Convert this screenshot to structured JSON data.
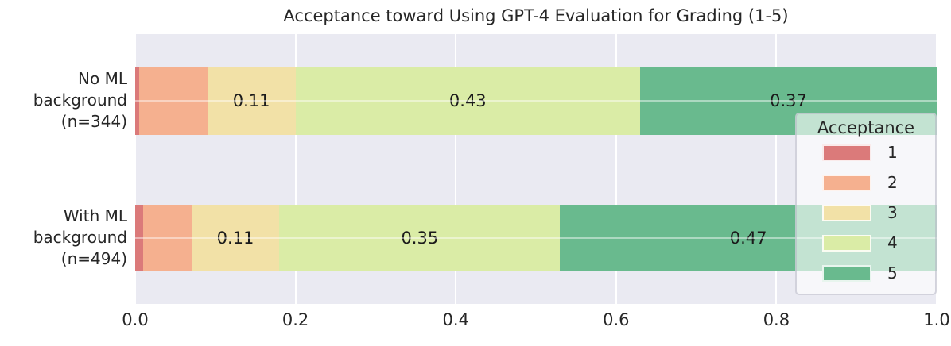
{
  "chart_data": {
    "type": "bar",
    "orientation": "horizontal",
    "stacked": true,
    "title": "Acceptance toward Using GPT-4 Evaluation for Grading (1-5)",
    "categories": [
      {
        "lines": [
          "No ML",
          "background",
          "(n=344)"
        ]
      },
      {
        "lines": [
          "With ML",
          "background",
          "(n=494)"
        ]
      }
    ],
    "series": [
      {
        "name": "1",
        "color": "#db7a7a",
        "values": [
          0.005,
          0.01
        ]
      },
      {
        "name": "2",
        "color": "#f5b08f",
        "values": [
          0.085,
          0.06
        ]
      },
      {
        "name": "3",
        "color": "#f2e1a7",
        "values": [
          0.11,
          0.11
        ]
      },
      {
        "name": "4",
        "color": "#daeca6",
        "values": [
          0.43,
          0.35
        ]
      },
      {
        "name": "5",
        "color": "#69ba8e",
        "values": [
          0.37,
          0.47
        ]
      }
    ],
    "bar_value_labels": [
      [
        "",
        "",
        "0.11",
        "0.43",
        "0.37"
      ],
      [
        "",
        "",
        "0.11",
        "0.35",
        "0.47"
      ]
    ],
    "xticks": [
      "0.0",
      "0.2",
      "0.4",
      "0.6",
      "0.8",
      "1.0"
    ],
    "xlim": [
      0,
      1
    ],
    "grid": true,
    "legend": {
      "title": "Acceptance",
      "entries": [
        "1",
        "2",
        "3",
        "4",
        "5"
      ],
      "position": "right"
    }
  },
  "colors": {
    "plot_background": "#eaeaf2",
    "figure_background": "#ffffff",
    "grid": "#ffffff",
    "text": "#262626",
    "bar_label_text": "#1a1a1a"
  }
}
